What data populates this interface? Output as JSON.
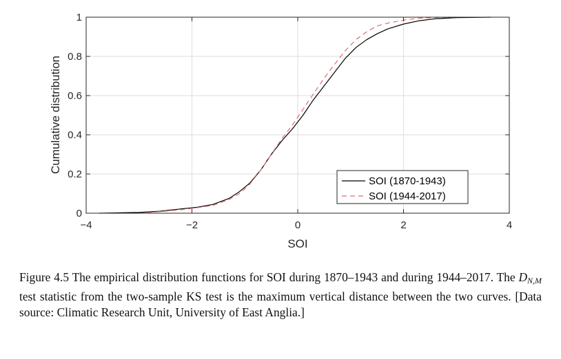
{
  "chart_data": {
    "type": "line",
    "xlabel": "SOI",
    "ylabel": "Cumulative distribution",
    "xlim": [
      -4,
      4
    ],
    "ylim": [
      0,
      1
    ],
    "xticks": [
      -4,
      -2,
      0,
      2,
      4
    ],
    "xtick_labels": [
      "−4",
      "−2",
      "0",
      "2",
      "4"
    ],
    "yticks": [
      0,
      0.2,
      0.4,
      0.6,
      0.8,
      1
    ],
    "ytick_labels": [
      "0",
      "0.2",
      "0.4",
      "0.6",
      "0.8",
      "1"
    ],
    "grid": true,
    "legend_position": "bottom-right",
    "series": [
      {
        "name": "SOI (1870-1943)",
        "color": "#000000",
        "dash": "solid",
        "x": [
          -3.75,
          -3.0,
          -2.6,
          -2.2,
          -1.9,
          -1.6,
          -1.3,
          -1.1,
          -0.9,
          -0.7,
          -0.5,
          -0.3,
          -0.1,
          0.1,
          0.3,
          0.5,
          0.7,
          0.9,
          1.1,
          1.3,
          1.5,
          1.7,
          2.0,
          2.3,
          2.6,
          3.0,
          3.65
        ],
        "y": [
          0.0,
          0.004,
          0.01,
          0.022,
          0.03,
          0.045,
          0.075,
          0.11,
          0.155,
          0.22,
          0.3,
          0.37,
          0.43,
          0.5,
          0.58,
          0.65,
          0.72,
          0.79,
          0.845,
          0.885,
          0.915,
          0.94,
          0.965,
          0.982,
          0.992,
          0.998,
          1.0
        ]
      },
      {
        "name": "SOI (1944-2017)",
        "color": "#e06c6c",
        "dash": "dashed",
        "x": [
          -3.0,
          -2.6,
          -2.2,
          -1.9,
          -1.6,
          -1.3,
          -1.1,
          -0.9,
          -0.7,
          -0.5,
          -0.3,
          -0.1,
          0.1,
          0.3,
          0.5,
          0.7,
          0.9,
          1.1,
          1.3,
          1.5,
          1.7,
          2.0,
          2.3,
          2.6,
          3.0
        ],
        "y": [
          0.0,
          0.008,
          0.018,
          0.028,
          0.04,
          0.07,
          0.1,
          0.15,
          0.22,
          0.3,
          0.38,
          0.45,
          0.53,
          0.61,
          0.69,
          0.76,
          0.83,
          0.885,
          0.925,
          0.955,
          0.97,
          0.985,
          0.995,
          0.998,
          1.0
        ]
      }
    ]
  },
  "caption": {
    "part1": "Figure 4.5 The empirical distribution functions for SOI during 1870–1943 and during 1944–2017. The ",
    "math_main": "D",
    "math_sub": "N,M",
    "part2": " test statistic from the two-sample KS test is the maximum vertical distance between the two curves. [Data source: Climatic Research Unit, University of East Anglia.]"
  }
}
